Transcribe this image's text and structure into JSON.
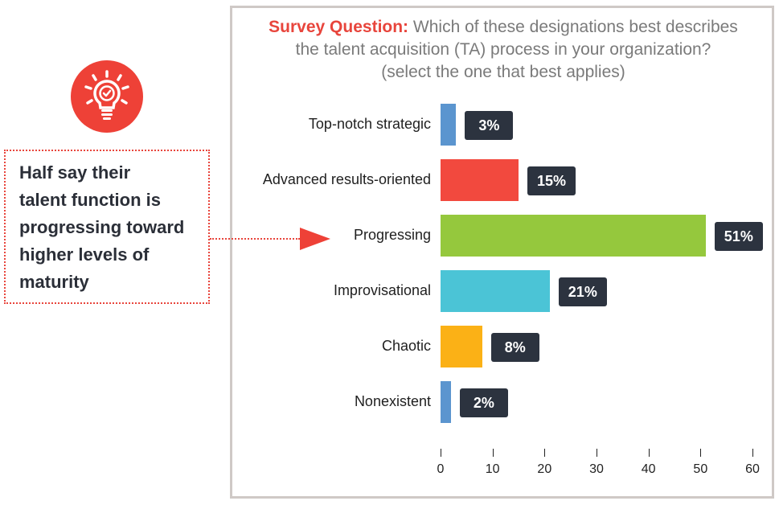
{
  "callout": {
    "icon": "lightbulb-check-icon",
    "text_lines": [
      "Half say their",
      "talent function is",
      "progressing toward",
      "higher levels of",
      "maturity"
    ],
    "accent_color": "#ee4137"
  },
  "chart_data": {
    "type": "bar",
    "orientation": "horizontal",
    "title_lead": "Survey Question:",
    "title_lines": [
      "Which of these designations best describes",
      "the talent acquisition (TA) process in your organization?",
      "(select the one that best applies)"
    ],
    "categories": [
      "Top-notch strategic",
      "Advanced results-oriented",
      "Progressing",
      "Improvisational",
      "Chaotic",
      "Nonexistent"
    ],
    "values": [
      3,
      15,
      51,
      21,
      8,
      2
    ],
    "value_labels": [
      "3%",
      "15%",
      "51%",
      "21%",
      "8%",
      "2%"
    ],
    "colors": [
      "#5b95cf",
      "#f2493e",
      "#95c83d",
      "#4bc4d6",
      "#fbb116",
      "#5b95cf"
    ],
    "highlight_category": "Progressing",
    "xlabel": "",
    "ylabel": "",
    "xlim": [
      0,
      60
    ],
    "xticks": [
      0,
      10,
      20,
      30,
      40,
      50,
      60
    ],
    "xtick_labels": [
      "0",
      "10",
      "20",
      "30",
      "40",
      "50",
      "60"
    ],
    "grid": false,
    "legend": "none"
  }
}
